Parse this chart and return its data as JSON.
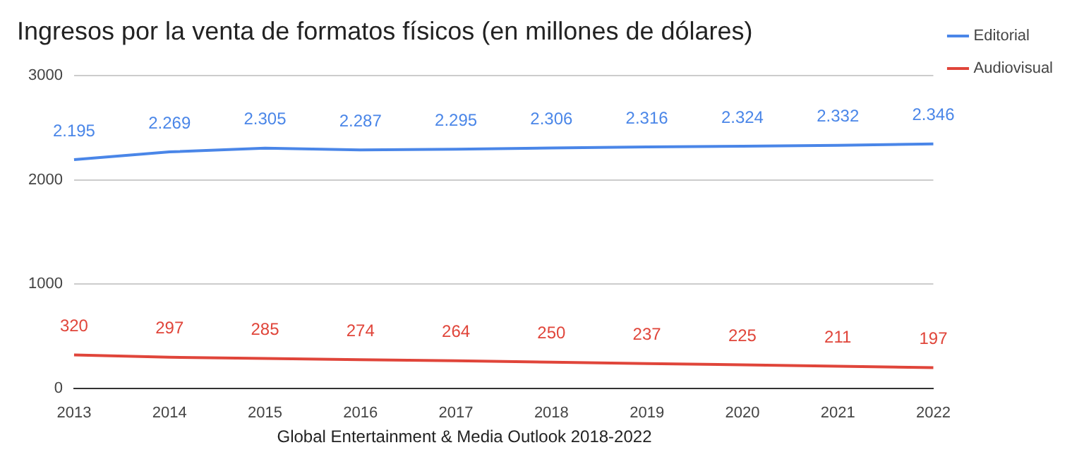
{
  "chart_data": {
    "type": "line",
    "title": "Ingresos por la venta de formatos físicos (en millones de dólares)",
    "categories": [
      "2013",
      "2014",
      "2015",
      "2016",
      "2017",
      "2018",
      "2019",
      "2020",
      "2021",
      "2022"
    ],
    "series": [
      {
        "name": "Editorial",
        "color": "#4a86e8",
        "values": [
          2195,
          2269,
          2305,
          2287,
          2295,
          2306,
          2316,
          2324,
          2332,
          2346
        ],
        "value_labels": [
          "2.195",
          "2.269",
          "2.305",
          "2.287",
          "2.295",
          "2.306",
          "2.316",
          "2.324",
          "2.332",
          "2.346"
        ]
      },
      {
        "name": "Audiovisual",
        "color": "#e0453a",
        "values": [
          320,
          297,
          285,
          274,
          264,
          250,
          237,
          225,
          211,
          197
        ],
        "value_labels": [
          "320",
          "297",
          "285",
          "274",
          "264",
          "250",
          "237",
          "225",
          "211",
          "197"
        ]
      }
    ],
    "ylim": [
      0,
      3000
    ],
    "yticks": [
      0,
      1000,
      2000,
      3000
    ],
    "grid": "y",
    "legend": "right",
    "marker": "none",
    "line_style": "solid",
    "annotations": [
      "Global Entertainment & Media Outlook 2018-2022"
    ]
  }
}
